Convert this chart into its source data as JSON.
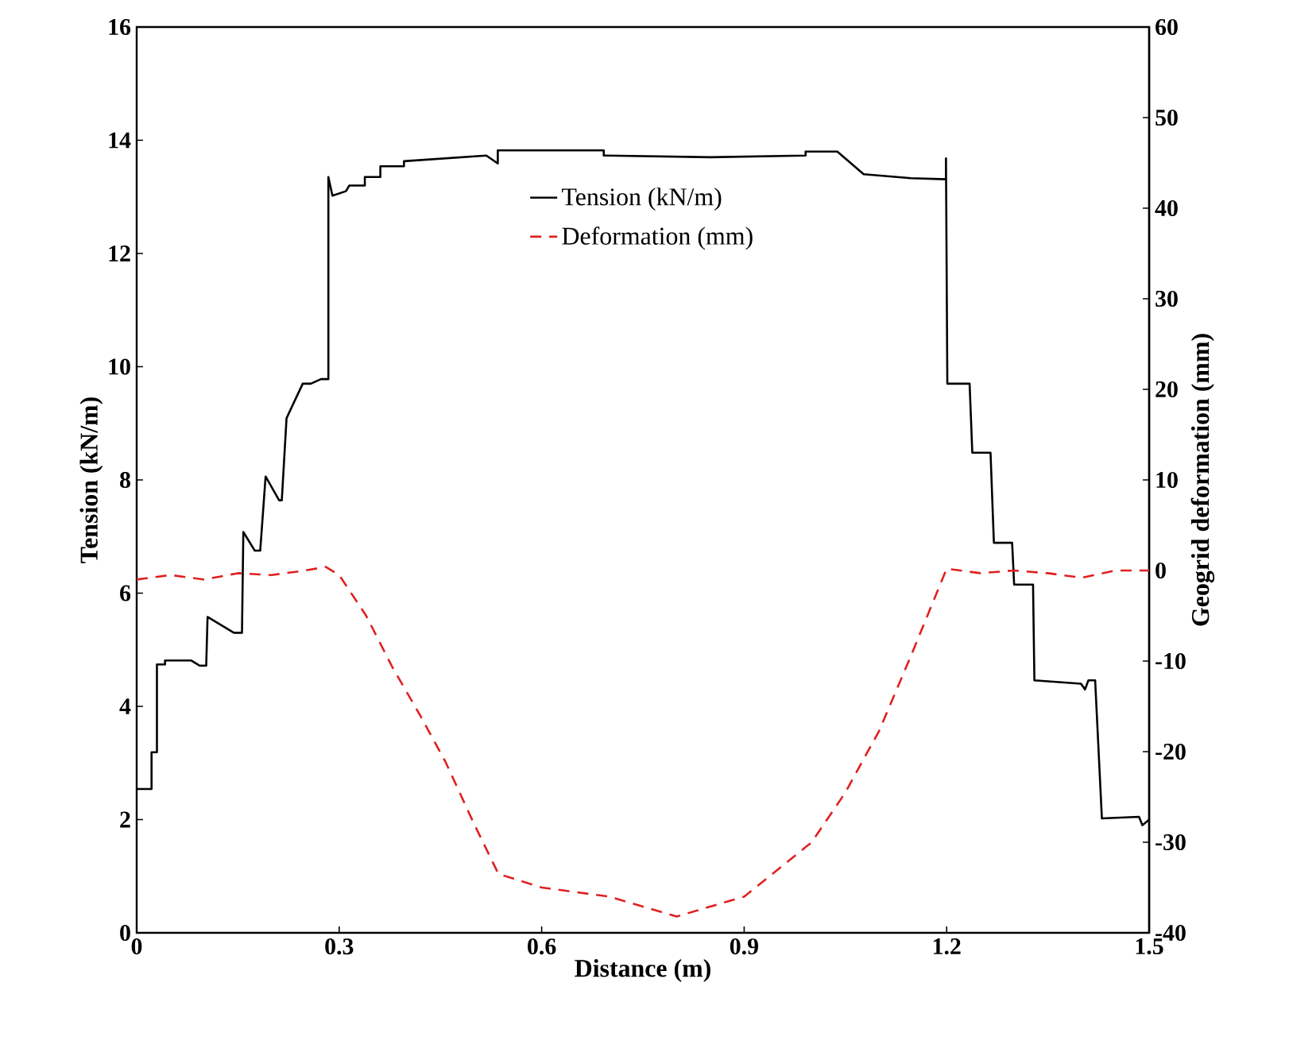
{
  "chart_data": {
    "type": "line",
    "xlabel": "Distance (m)",
    "ylabel": "Tension  (kN/m)",
    "y2label": "Geogrid deformation (mm)",
    "xlim": [
      0,
      1.5
    ],
    "xticks": [
      0,
      0.3,
      0.6,
      0.9,
      1.2,
      1.5
    ],
    "ylim": [
      0,
      16
    ],
    "yticks": [
      0,
      2,
      4,
      6,
      8,
      10,
      12,
      14,
      16
    ],
    "y2lim": [
      -40,
      60
    ],
    "y2ticks": [
      -40,
      -30,
      -20,
      -10,
      0,
      10,
      20,
      30,
      40,
      50,
      60
    ],
    "legend": "top",
    "grid": false,
    "series": [
      {
        "name": "Tension (kN/m)",
        "color": "#000000",
        "line_style": "solid",
        "x": [
          0,
          0.022,
          0.022,
          0.03,
          0.03,
          0.042,
          0.042,
          0.081,
          0.081,
          0.093,
          0.103,
          0.105,
          0.105,
          0.144,
          0.156,
          0.158,
          0.158,
          0.175,
          0.183,
          0.191,
          0.191,
          0.211,
          0.215,
          0.222,
          0.222,
          0.246,
          0.258,
          0.273,
          0.276,
          0.284,
          0.284,
          0.29,
          0.31,
          0.315,
          0.338,
          0.338,
          0.361,
          0.361,
          0.396,
          0.396,
          0.518,
          0.535,
          0.535,
          0.692,
          0.692,
          0.85,
          0.991,
          0.991,
          1.038,
          1.077,
          1.147,
          1.199,
          1.199,
          1.201,
          1.234,
          1.238,
          1.265,
          1.27,
          1.297,
          1.3,
          1.328,
          1.33,
          1.399,
          1.405,
          1.41,
          1.42,
          1.43,
          1.485,
          1.49,
          1.5
        ],
        "values": [
          2.54,
          2.54,
          3.19,
          3.19,
          4.74,
          4.74,
          4.81,
          4.81,
          4.81,
          4.72,
          4.72,
          5.58,
          5.58,
          5.3,
          5.3,
          7.08,
          7.08,
          6.75,
          6.75,
          8.06,
          8.06,
          7.64,
          7.64,
          9.09,
          9.09,
          9.7,
          9.7,
          9.78,
          9.78,
          9.78,
          13.35,
          13.02,
          13.1,
          13.2,
          13.2,
          13.35,
          13.35,
          13.54,
          13.54,
          13.63,
          13.73,
          13.59,
          13.82,
          13.82,
          13.73,
          13.7,
          13.73,
          13.8,
          13.8,
          13.4,
          13.33,
          13.31,
          13.68,
          9.7,
          9.7,
          8.48,
          8.48,
          6.89,
          6.89,
          6.15,
          6.15,
          4.46,
          4.4,
          4.3,
          4.46,
          4.46,
          2.02,
          2.05,
          1.9,
          2.0
        ]
      },
      {
        "name": "Deformation (mm)",
        "color": "#e02020",
        "line_style": "dashed",
        "axis": "y2",
        "x": [
          0,
          0.05,
          0.1,
          0.15,
          0.2,
          0.25,
          0.28,
          0.3,
          0.34,
          0.379,
          0.42,
          0.458,
          0.5,
          0.536,
          0.6,
          0.7,
          0.8,
          0.9,
          1.0,
          1.05,
          1.1,
          1.15,
          1.2,
          1.25,
          1.3,
          1.35,
          1.4,
          1.45,
          1.5
        ],
        "values": [
          -1.0,
          -0.5,
          -1.0,
          -0.3,
          -0.5,
          0,
          0.4,
          -0.5,
          -5,
          -10.7,
          -16,
          -21.2,
          -28,
          -33.5,
          -35,
          -36,
          -38.2,
          -36,
          -30,
          -24.5,
          -17.7,
          -8.9,
          0.2,
          -0.3,
          0,
          -0.3,
          -0.8,
          0,
          0
        ]
      }
    ]
  }
}
